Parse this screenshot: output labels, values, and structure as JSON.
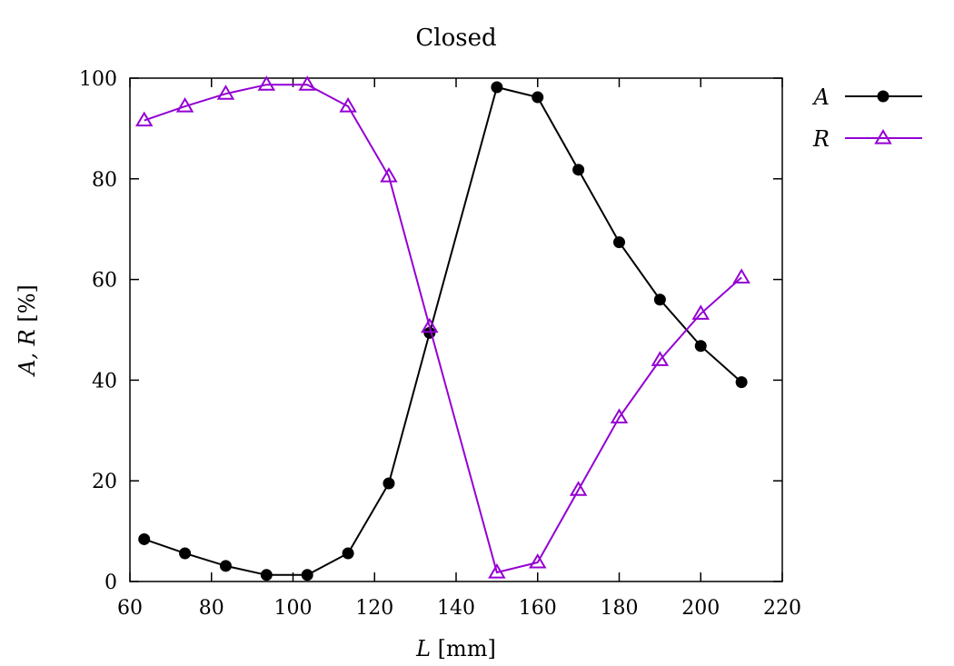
{
  "chart_data": {
    "type": "line",
    "title": "Closed",
    "xlabel": "L [mm]",
    "ylabel": "A, R [%]",
    "xlim": [
      60,
      220
    ],
    "ylim": [
      0,
      100
    ],
    "xticks": [
      60,
      80,
      100,
      120,
      140,
      160,
      180,
      200,
      220
    ],
    "yticks": [
      0,
      20,
      40,
      60,
      80,
      100
    ],
    "grid": false,
    "legend_position": "outside-right-top",
    "series": [
      {
        "name": "A",
        "color": "#000000",
        "marker": "circle",
        "x": [
          63.5,
          73.5,
          83.5,
          93.5,
          103.5,
          113.5,
          123.5,
          133.5,
          150,
          160,
          170,
          180,
          190,
          200,
          210
        ],
        "y": [
          8.4,
          5.6,
          3.1,
          1.3,
          1.3,
          5.6,
          19.5,
          49.4,
          98.2,
          96.2,
          81.8,
          67.4,
          56.0,
          46.8,
          39.6
        ]
      },
      {
        "name": "R",
        "color": "#9400d3",
        "marker": "triangle-open",
        "x": [
          63.5,
          73.5,
          83.5,
          93.5,
          103.5,
          113.5,
          123.5,
          133.5,
          150,
          160,
          170,
          180,
          190,
          200,
          210
        ],
        "y": [
          91.6,
          94.4,
          96.9,
          98.7,
          98.7,
          94.4,
          80.5,
          50.6,
          1.8,
          3.8,
          18.2,
          32.6,
          44.0,
          53.2,
          60.4
        ]
      }
    ]
  }
}
